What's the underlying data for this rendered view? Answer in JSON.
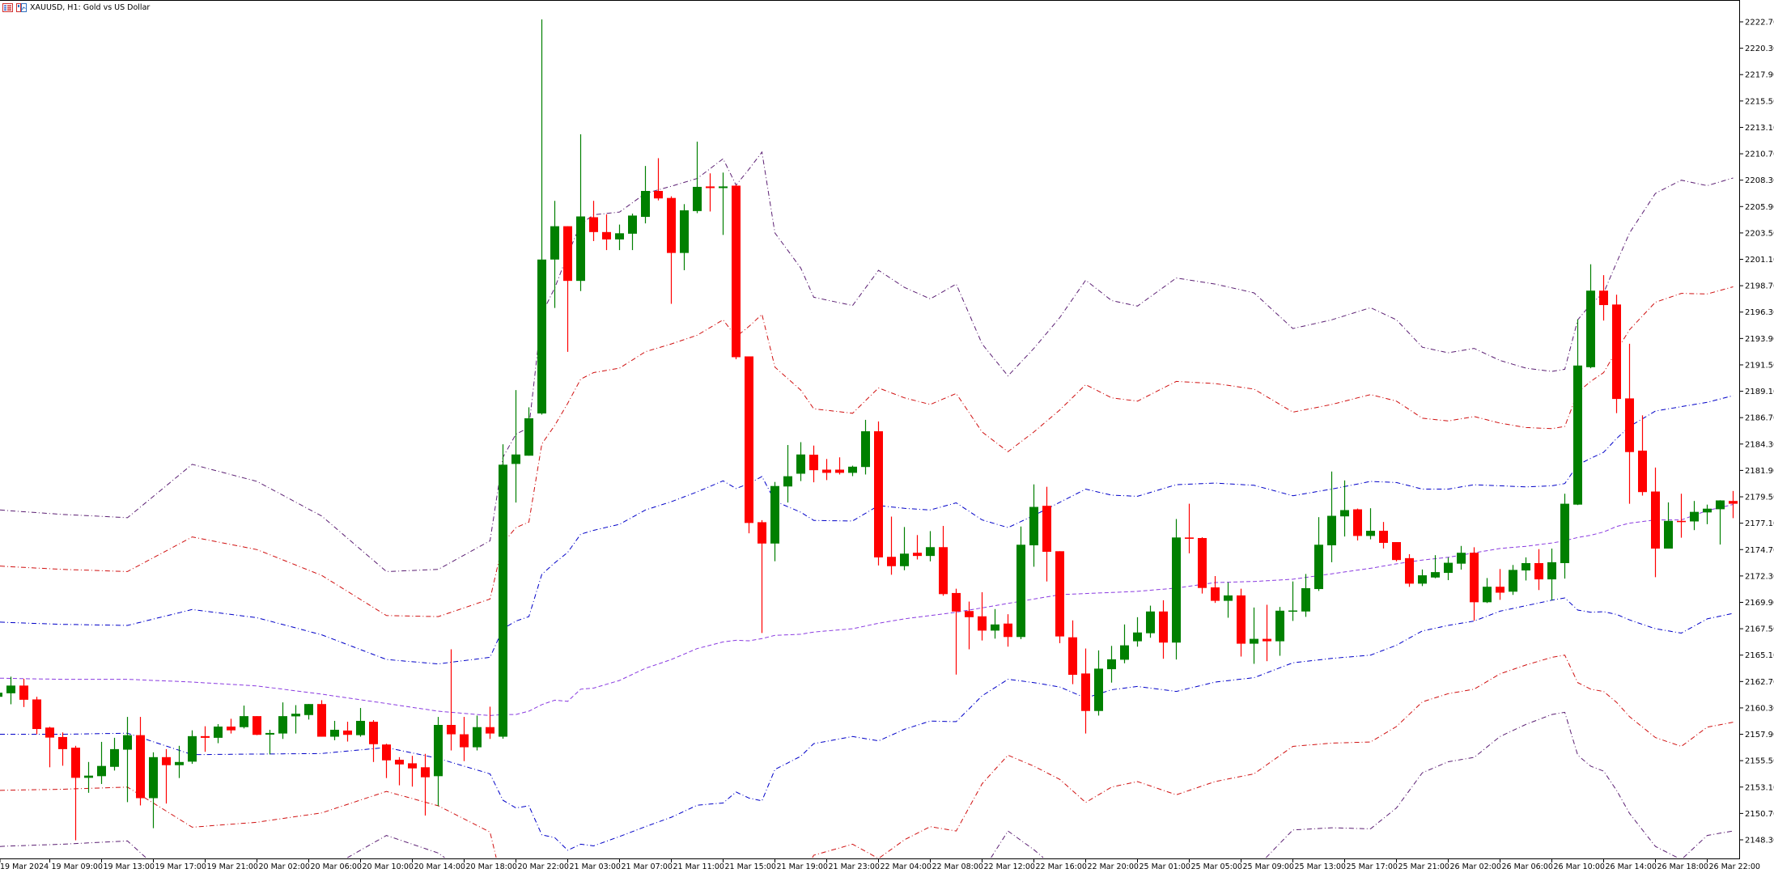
{
  "window": {
    "symbol_title": "XAUUSD, H1:  Gold vs US Dollar",
    "icons": [
      "indicator-list-icon",
      "chart-window-icon"
    ]
  },
  "colors": {
    "background": "#ffffff",
    "bull": "#008000",
    "bear": "#ff0000",
    "axis": "#000000",
    "band_outer": "#5b1f73",
    "band_2": "#d01010",
    "band_1": "#0000c8",
    "band_middle": "#8a3be0"
  },
  "chart_data": {
    "type": "candlestick",
    "timeframe": "H1",
    "y_axis": {
      "position": "right",
      "ticks": [
        "2222.70",
        "2220.30",
        "2217.90",
        "2215.50",
        "2213.10",
        "2210.70",
        "2208.30",
        "2205.90",
        "2203.50",
        "2201.10",
        "2198.70",
        "2196.30",
        "2193.90",
        "2191.50",
        "2189.10",
        "2186.70",
        "2184.30",
        "2181.90",
        "2179.50",
        "2177.10",
        "2174.70",
        "2172.30",
        "2169.90",
        "2167.50",
        "2165.10",
        "2162.70",
        "2160.30",
        "2157.90",
        "2155.50",
        "2153.10",
        "2150.70",
        "2148.30"
      ]
    },
    "x_axis": {
      "ticks": [
        "19 Mar 2024",
        "19 Mar 09:00",
        "19 Mar 13:00",
        "19 Mar 17:00",
        "19 Mar 21:00",
        "20 Mar 02:00",
        "20 Mar 06:00",
        "20 Mar 10:00",
        "20 Mar 14:00",
        "20 Mar 18:00",
        "20 Mar 22:00",
        "21 Mar 03:00",
        "21 Mar 07:00",
        "21 Mar 11:00",
        "21 Mar 15:00",
        "21 Mar 19:00",
        "21 Mar 23:00",
        "22 Mar 04:00",
        "22 Mar 08:00",
        "22 Mar 12:00",
        "22 Mar 16:00",
        "22 Mar 20:00",
        "25 Mar 01:00",
        "25 Mar 05:00",
        "25 Mar 09:00",
        "25 Mar 13:00",
        "25 Mar 17:00",
        "25 Mar 21:00",
        "26 Mar 02:00",
        "26 Mar 06:00",
        "26 Mar 10:00",
        "26 Mar 14:00",
        "26 Mar 18:00",
        "26 Mar 22:00"
      ],
      "bars_per_tick": 4
    },
    "ohlc_fields": [
      "open",
      "high",
      "low",
      "close"
    ],
    "ohlc": [
      [
        2161.31,
        2162.3,
        2160.8,
        2161.68
      ],
      [
        2161.63,
        2163.14,
        2160.63,
        2162.33
      ],
      [
        2162.33,
        2162.94,
        2160.38,
        2161.04
      ],
      [
        2161.07,
        2161.31,
        2157.9,
        2158.38
      ],
      [
        2158.51,
        2158.58,
        2154.9,
        2157.6
      ],
      [
        2157.65,
        2158.07,
        2155.04,
        2156.55
      ],
      [
        2156.68,
        2156.85,
        2148.26,
        2153.94
      ],
      [
        2153.94,
        2155.38,
        2152.58,
        2154.14
      ],
      [
        2154.09,
        2157.21,
        2153.38,
        2155.02
      ],
      [
        2154.94,
        2157.58,
        2154.6,
        2156.55
      ],
      [
        2156.5,
        2159.48,
        2151.73,
        2157.82
      ],
      [
        2157.82,
        2159.48,
        2151.43,
        2152.09
      ],
      [
        2152.09,
        2156.26,
        2149.36,
        2155.82
      ],
      [
        2155.82,
        2156.55,
        2151.6,
        2155.09
      ],
      [
        2155.09,
        2156.85,
        2153.92,
        2155.38
      ],
      [
        2155.41,
        2158.26,
        2155.21,
        2157.73
      ],
      [
        2157.73,
        2158.63,
        2156.31,
        2157.58
      ],
      [
        2157.58,
        2158.82,
        2157.09,
        2158.6
      ],
      [
        2158.6,
        2159.31,
        2157.97,
        2158.26
      ],
      [
        2158.55,
        2160.51,
        2158.43,
        2159.55
      ],
      [
        2159.55,
        2159.55,
        2157.82,
        2157.85
      ],
      [
        2157.87,
        2158.31,
        2156.07,
        2158.02
      ],
      [
        2157.97,
        2160.8,
        2157.48,
        2159.55
      ],
      [
        2159.53,
        2160.55,
        2157.97,
        2159.77
      ],
      [
        2159.65,
        2160.65,
        2159.24,
        2160.65
      ],
      [
        2160.65,
        2161.0,
        2157.68,
        2157.68
      ],
      [
        2157.68,
        2159.12,
        2157.36,
        2158.31
      ],
      [
        2158.24,
        2159.04,
        2157.24,
        2157.85
      ],
      [
        2157.82,
        2160.29,
        2157.68,
        2159.12
      ],
      [
        2159.04,
        2159.19,
        2155.38,
        2157.0
      ],
      [
        2156.97,
        2157.04,
        2153.92,
        2155.53
      ],
      [
        2155.58,
        2155.82,
        2153.26,
        2155.16
      ],
      [
        2155.26,
        2155.94,
        2153.14,
        2154.8
      ],
      [
        2154.9,
        2156.12,
        2150.51,
        2153.99
      ],
      [
        2154.09,
        2159.48,
        2151.38,
        2158.75
      ],
      [
        2158.75,
        2165.63,
        2156.43,
        2157.9
      ],
      [
        2157.9,
        2159.48,
        2155.46,
        2156.72
      ],
      [
        2156.72,
        2159.6,
        2156.43,
        2158.55
      ],
      [
        2158.55,
        2160.41,
        2157.48,
        2157.97
      ],
      [
        2157.68,
        2184.28,
        2157.5,
        2182.42
      ],
      [
        2182.49,
        2189.21,
        2178.98,
        2183.35
      ],
      [
        2183.24,
        2187.64,
        2183.24,
        2186.64
      ],
      [
        2187.08,
        2222.92,
        2186.97,
        2201.08
      ],
      [
        2201.08,
        2206.42,
        2196.68,
        2204.11
      ],
      [
        2204.11,
        2204.11,
        2192.68,
        2199.14
      ],
      [
        2199.14,
        2212.47,
        2198.21,
        2205.0
      ],
      [
        2204.93,
        2206.42,
        2202.76,
        2203.58
      ],
      [
        2203.58,
        2205.19,
        2201.94,
        2202.91
      ],
      [
        2202.91,
        2204.26,
        2201.94,
        2203.47
      ],
      [
        2203.43,
        2205.26,
        2201.94,
        2205.08
      ],
      [
        2204.96,
        2209.59,
        2204.37,
        2207.32
      ],
      [
        2207.32,
        2210.3,
        2206.46,
        2206.64
      ],
      [
        2206.68,
        2206.83,
        2197.05,
        2201.68
      ],
      [
        2201.68,
        2206.12,
        2200.11,
        2205.56
      ],
      [
        2205.49,
        2211.8,
        2205.3,
        2207.69
      ],
      [
        2207.73,
        2208.92,
        2205.45,
        2207.58
      ],
      [
        2207.58,
        2208.99,
        2203.32,
        2207.73
      ],
      [
        2207.8,
        2207.88,
        2192.01,
        2192.2
      ],
      [
        2192.27,
        2192.27,
        2176.18,
        2177.12
      ],
      [
        2177.19,
        2177.38,
        2167.11,
        2175.25
      ],
      [
        2175.25,
        2180.85,
        2173.64,
        2180.48
      ],
      [
        2180.44,
        2184.21,
        2178.98,
        2181.37
      ],
      [
        2181.6,
        2184.47,
        2180.93,
        2183.35
      ],
      [
        2183.33,
        2184.16,
        2180.82,
        2181.92
      ],
      [
        2181.97,
        2182.94,
        2181.02,
        2181.68
      ],
      [
        2181.97,
        2183.09,
        2181.53,
        2181.68
      ],
      [
        2181.68,
        2182.33,
        2181.38,
        2182.24
      ],
      [
        2182.21,
        2186.5,
        2181.53,
        2185.46
      ],
      [
        2185.46,
        2186.36,
        2173.26,
        2173.99
      ],
      [
        2174.04,
        2177.7,
        2172.41,
        2173.19
      ],
      [
        2173.19,
        2176.75,
        2172.82,
        2174.33
      ],
      [
        2174.41,
        2176.02,
        2173.8,
        2174.12
      ],
      [
        2174.12,
        2176.38,
        2173.63,
        2174.92
      ],
      [
        2174.92,
        2176.85,
        2170.5,
        2170.65
      ],
      [
        2170.75,
        2171.14,
        2163.33,
        2169.07
      ],
      [
        2169.11,
        2169.97,
        2165.63,
        2168.55
      ],
      [
        2168.63,
        2170.82,
        2166.43,
        2167.33
      ],
      [
        2167.33,
        2169.29,
        2166.6,
        2167.89
      ],
      [
        2167.97,
        2168.82,
        2165.87,
        2166.75
      ],
      [
        2166.75,
        2176.8,
        2166.55,
        2175.14
      ],
      [
        2175.09,
        2180.63,
        2173.14,
        2178.58
      ],
      [
        2178.68,
        2180.41,
        2171.8,
        2174.5
      ],
      [
        2174.55,
        2174.55,
        2166.19,
        2166.8
      ],
      [
        2166.72,
        2168.26,
        2162.46,
        2163.31
      ],
      [
        2163.43,
        2165.7,
        2157.97,
        2160.02
      ],
      [
        2160.02,
        2165.53,
        2159.6,
        2163.87
      ],
      [
        2163.82,
        2165.94,
        2162.6,
        2164.72
      ],
      [
        2164.68,
        2167.89,
        2164.36,
        2165.99
      ],
      [
        2166.36,
        2168.55,
        2165.87,
        2167.16
      ],
      [
        2167.09,
        2169.6,
        2166.68,
        2169.07
      ],
      [
        2169.07,
        2170.09,
        2164.77,
        2166.24
      ],
      [
        2166.24,
        2177.48,
        2164.7,
        2175.8
      ],
      [
        2175.8,
        2178.87,
        2174.36,
        2175.68
      ],
      [
        2175.75,
        2175.82,
        2170.7,
        2171.21
      ],
      [
        2171.26,
        2172.29,
        2169.85,
        2170.04
      ],
      [
        2170.04,
        2171.72,
        2168.5,
        2170.53
      ],
      [
        2170.53,
        2171.14,
        2164.97,
        2166.14
      ],
      [
        2166.14,
        2169.43,
        2164.31,
        2166.58
      ],
      [
        2166.58,
        2169.68,
        2164.55,
        2166.36
      ],
      [
        2166.36,
        2169.48,
        2165.04,
        2169.14
      ],
      [
        2169.07,
        2171.8,
        2168.21,
        2169.16
      ],
      [
        2169.07,
        2172.48,
        2168.58,
        2171.19
      ],
      [
        2171.11,
        2177.65,
        2170.94,
        2175.14
      ],
      [
        2175.09,
        2181.8,
        2173.55,
        2177.77
      ],
      [
        2177.72,
        2180.99,
        2175.89,
        2178.29
      ],
      [
        2178.36,
        2178.43,
        2175.53,
        2175.94
      ],
      [
        2175.94,
        2178.46,
        2175.63,
        2176.41
      ],
      [
        2176.41,
        2177.21,
        2174.8,
        2175.31
      ],
      [
        2175.38,
        2175.38,
        2173.63,
        2173.75
      ],
      [
        2173.92,
        2174.28,
        2171.31,
        2171.6
      ],
      [
        2171.6,
        2172.89,
        2171.38,
        2172.36
      ],
      [
        2172.16,
        2174.19,
        2172.09,
        2172.65
      ],
      [
        2172.58,
        2173.99,
        2171.92,
        2173.5
      ],
      [
        2173.42,
        2175.03,
        2172.88,
        2174.41
      ],
      [
        2174.41,
        2174.91,
        2168.23,
        2169.91
      ],
      [
        2169.91,
        2172.11,
        2169.84,
        2171.32
      ],
      [
        2171.32,
        2172.93,
        2170.13,
        2170.78
      ],
      [
        2170.87,
        2173.3,
        2170.58,
        2172.85
      ],
      [
        2172.8,
        2173.99,
        2171.89,
        2173.47
      ],
      [
        2173.47,
        2174.74,
        2171.02,
        2171.99
      ],
      [
        2171.99,
        2174.79,
        2170.08,
        2173.55
      ],
      [
        2173.47,
        2179.78,
        2172.06,
        2178.87
      ],
      [
        2178.79,
        2195.65,
        2178.75,
        2191.44
      ],
      [
        2191.29,
        2200.65,
        2191.19,
        2198.25
      ],
      [
        2198.25,
        2199.66,
        2195.53,
        2196.94
      ],
      [
        2196.99,
        2197.88,
        2187.11,
        2188.4
      ],
      [
        2188.45,
        2193.42,
        2178.87,
        2183.57
      ],
      [
        2183.7,
        2186.91,
        2179.61,
        2179.93
      ],
      [
        2179.98,
        2182.16,
        2172.19,
        2174.79
      ],
      [
        2174.79,
        2178.99,
        2174.79,
        2177.31
      ],
      [
        2177.31,
        2179.78,
        2175.78,
        2177.21
      ],
      [
        2177.26,
        2179.12,
        2176.47,
        2178.13
      ],
      [
        2178.08,
        2178.79,
        2177.01,
        2178.42
      ],
      [
        2178.37,
        2179.19,
        2175.16,
        2179.17
      ],
      [
        2179.12,
        2180.03,
        2177.56,
        2178.87
      ]
    ],
    "bands": {
      "deviations": [
        1,
        2,
        3
      ],
      "sample_fields": [
        "bar_index",
        "middle",
        "deviation_width"
      ],
      "samples": [
        [
          0,
          2163.0,
          5.1
        ],
        [
          5,
          2162.9,
          5.0
        ],
        [
          10,
          2162.9,
          4.9
        ],
        [
          15,
          2162.65,
          6.6
        ],
        [
          20,
          2162.3,
          6.2
        ],
        [
          25,
          2161.55,
          5.4
        ],
        [
          30,
          2160.7,
          4.0
        ],
        [
          34,
          2160.0,
          4.3
        ],
        [
          38,
          2159.6,
          5.3
        ],
        [
          39,
          2159.7,
          7.8
        ],
        [
          40,
          2159.7,
          8.5
        ],
        [
          41,
          2160.0,
          8.6
        ],
        [
          42,
          2160.6,
          11.85
        ],
        [
          43,
          2161.0,
          12.5
        ],
        [
          44,
          2160.9,
          13.55
        ],
        [
          45,
          2162.0,
          14.1
        ],
        [
          46,
          2162.1,
          14.35
        ],
        [
          48,
          2162.8,
          14.2
        ],
        [
          50,
          2163.9,
          14.4
        ],
        [
          52,
          2164.7,
          14.35
        ],
        [
          54,
          2165.7,
          14.25
        ],
        [
          56,
          2166.3,
          14.65
        ],
        [
          57,
          2166.45,
          13.8
        ],
        [
          58,
          2166.4,
          14.3
        ],
        [
          59,
          2166.6,
          14.75
        ],
        [
          60,
          2166.9,
          12.2
        ],
        [
          62,
          2167.0,
          11.1
        ],
        [
          63,
          2167.2,
          10.15
        ],
        [
          66,
          2167.5,
          9.8
        ],
        [
          68,
          2168.0,
          10.7
        ],
        [
          70,
          2168.4,
          10.05
        ],
        [
          72,
          2168.7,
          9.6
        ],
        [
          74,
          2169.0,
          9.95
        ],
        [
          76,
          2169.4,
          8.0
        ],
        [
          78,
          2169.8,
          6.9
        ],
        [
          80,
          2170.2,
          7.6
        ],
        [
          82,
          2170.6,
          8.4
        ],
        [
          84,
          2170.7,
          9.5
        ],
        [
          86,
          2170.8,
          8.85
        ],
        [
          88,
          2170.9,
          8.65
        ],
        [
          91,
          2171.2,
          9.4
        ],
        [
          94,
          2171.7,
          9.05
        ],
        [
          97,
          2171.8,
          8.75
        ],
        [
          100,
          2172.0,
          7.6
        ],
        [
          103,
          2172.5,
          7.7
        ],
        [
          106,
          2173.0,
          7.9
        ],
        [
          108,
          2173.4,
          7.4
        ],
        [
          110,
          2173.75,
          6.45
        ],
        [
          112,
          2174.0,
          6.2
        ],
        [
          114,
          2174.4,
          6.2
        ],
        [
          116,
          2174.8,
          5.7
        ],
        [
          118,
          2175.0,
          5.4
        ],
        [
          120,
          2175.3,
          5.2
        ],
        [
          121,
          2175.5,
          5.2
        ],
        [
          122,
          2175.8,
          6.6
        ],
        [
          123,
          2176.0,
          7.0
        ],
        [
          124,
          2176.3,
          7.25
        ],
        [
          125,
          2176.8,
          8.0
        ],
        [
          126,
          2177.1,
          8.8
        ],
        [
          128,
          2177.4,
          9.9
        ],
        [
          130,
          2177.4,
          10.3
        ],
        [
          132,
          2178.25,
          9.85
        ],
        [
          134,
          2178.8,
          9.9
        ]
      ]
    }
  }
}
